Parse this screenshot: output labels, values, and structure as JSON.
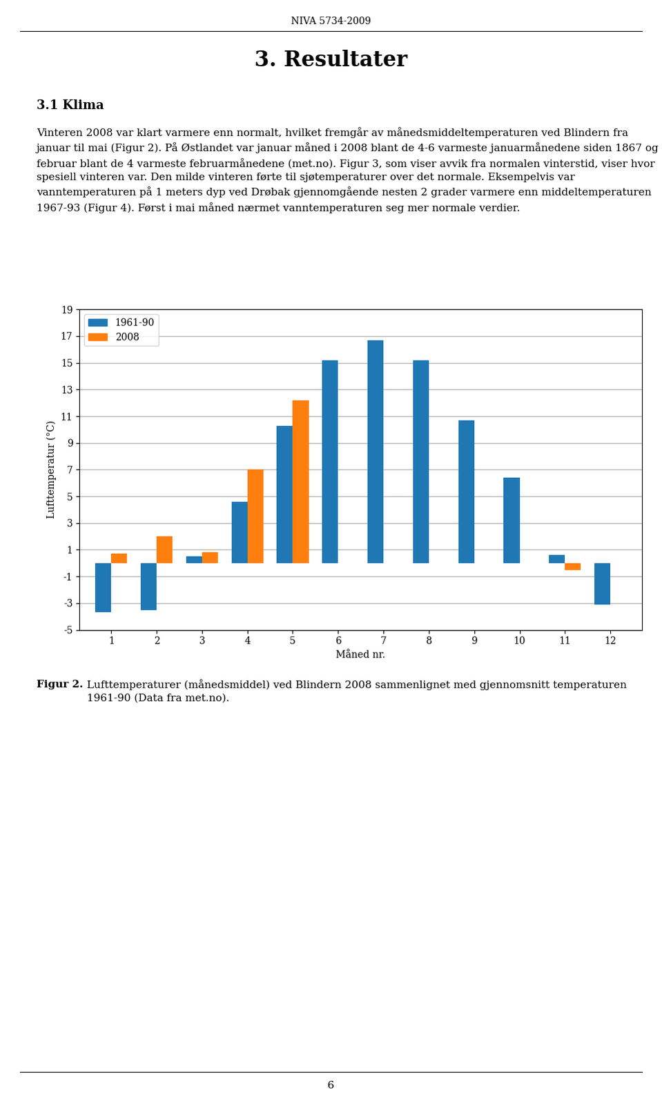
{
  "chart_data": {
    "type": "bar",
    "annotations": [
      "NIVA 5734-2009",
      "3. Resultater",
      "3.1 Klima",
      "Vinteren 2008 var klart varmere enn normalt, hvilket fremgår av månedsmiddeltemperaturen ved Blindern fra januar til mai (Figur 2). På Østlandet var januar måned i 2008 blant de 4-6 varmeste januarmånedene siden 1867 og februar blant de 4 varmeste februarmånedene (met.no). Figur 3, som viser avvik fra normalen vinterstid, viser hvor spesiell vinteren var. Den milde vinteren førte til sjøtemperaturer over det normale. Eksempelvis var vanntemperaturen på 1 meters dyp ved Drøbak gjennomgående nesten 2 grader varmere enn middeltemperaturen 1967-93 (Figur 4). Først i mai måned nærmet vanntemperaturen seg mer normale verdier.",
      "Figur 2.",
      "Lufttemperaturer (månedsmiddel) ved Blindern 2008 sammenlignet med gjennomsnitt temperaturen 1961-90 (Data fra met.no).",
      "6"
    ],
    "xlabel": "Måned nr.",
    "ylabel": "Lufttemperatur (°C)",
    "x": [
      1,
      2,
      3,
      4,
      5,
      6,
      7,
      8,
      9,
      10,
      11,
      12
    ],
    "series": [
      {
        "name": "1961-90",
        "values": [
          -3.7,
          -3.5,
          0.5,
          4.6,
          10.3,
          15.2,
          16.7,
          15.2,
          10.7,
          6.4,
          0.6,
          -3.1
        ]
      },
      {
        "name": "2008",
        "values": [
          0.7,
          2.0,
          0.8,
          7.0,
          12.2,
          null,
          null,
          null,
          null,
          null,
          -0.5,
          null
        ]
      }
    ],
    "xlim": [
      0.3,
      12.7
    ],
    "xticks": [
      1,
      2,
      3,
      4,
      5,
      6,
      7,
      8,
      9,
      10,
      11,
      12
    ],
    "ylim": [
      -5,
      19
    ],
    "yticks": [
      -5,
      -3,
      -1,
      1,
      3,
      5,
      7,
      9,
      11,
      13,
      15,
      17,
      19
    ],
    "grid": true,
    "legend": "upper left"
  }
}
